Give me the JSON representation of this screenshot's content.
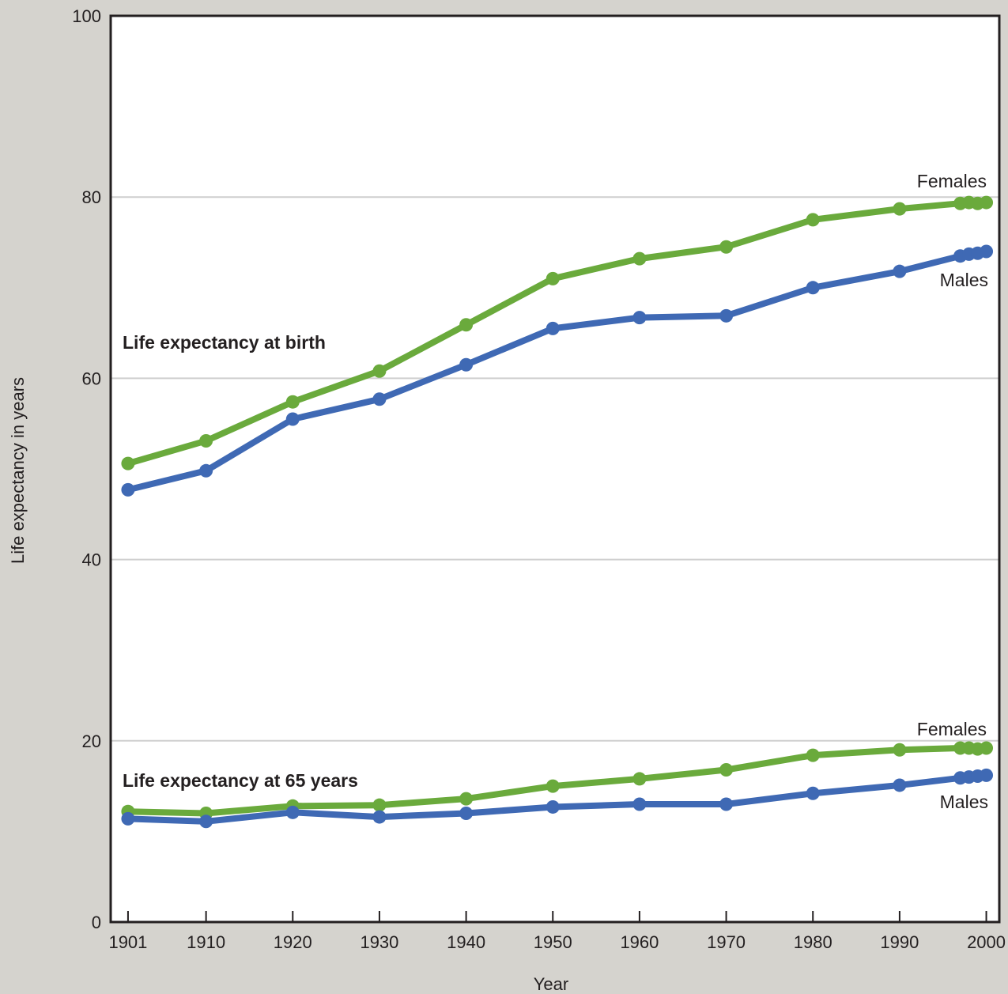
{
  "chart_data": {
    "type": "line",
    "title": "",
    "xlabel": "Year",
    "ylabel": "Life expectancy in years",
    "xlim": [
      1899,
      2001.5
    ],
    "ylim": [
      0,
      100
    ],
    "x_ticks": [
      1901,
      1910,
      1920,
      1930,
      1940,
      1950,
      1960,
      1970,
      1980,
      1990,
      2000
    ],
    "y_ticks": [
      0,
      20,
      40,
      60,
      80,
      100
    ],
    "grid": "horizontal",
    "colors": {
      "females": "#6aaa3c",
      "males": "#3f69b4"
    },
    "x": [
      1901,
      1910,
      1920,
      1930,
      1940,
      1950,
      1960,
      1970,
      1980,
      1990,
      1997,
      1998,
      1999,
      2000
    ],
    "series": [
      {
        "group": "birth",
        "name": "Females",
        "color": "#6aaa3c",
        "values": [
          50.6,
          53.1,
          57.4,
          60.8,
          65.9,
          71.0,
          73.2,
          74.5,
          77.5,
          78.7,
          79.3,
          79.4,
          79.3,
          79.4
        ]
      },
      {
        "group": "birth",
        "name": "Males",
        "color": "#3f69b4",
        "values": [
          47.7,
          49.8,
          55.5,
          57.7,
          61.5,
          65.5,
          66.7,
          66.9,
          70.0,
          71.8,
          73.5,
          73.7,
          73.8,
          74.0
        ]
      },
      {
        "group": "age65",
        "name": "Females",
        "color": "#6aaa3c",
        "values": [
          12.2,
          12.0,
          12.8,
          12.9,
          13.6,
          15.0,
          15.8,
          16.8,
          18.4,
          19.0,
          19.2,
          19.2,
          19.1,
          19.2
        ]
      },
      {
        "group": "age65",
        "name": "Males",
        "color": "#3f69b4",
        "values": [
          11.4,
          11.1,
          12.1,
          11.6,
          12.0,
          12.7,
          13.0,
          13.0,
          14.2,
          15.1,
          15.9,
          16.0,
          16.1,
          16.2
        ]
      }
    ],
    "annotations": {
      "birth": "Life expectancy at birth",
      "age65": "Life expectancy at 65 years",
      "birth_females": "Females",
      "birth_males": "Males",
      "age65_females": "Females",
      "age65_males": "Males"
    }
  }
}
